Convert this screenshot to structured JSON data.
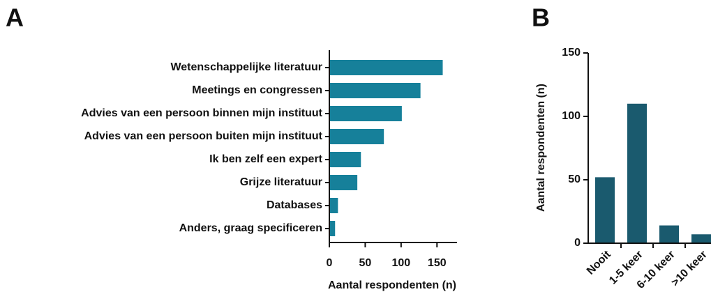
{
  "chart_data": [
    {
      "type": "hbar",
      "panel": "A",
      "categories": [
        "Wetenschappelijke literatuur",
        "Meetings en congressen",
        "Advies van een persoon binnen mijn instituut",
        "Advies van een persoon buiten mijn instituut",
        "Ik ben zelf een expert",
        "Grijze literatuur",
        "Databases",
        "Anders, graag specificeren"
      ],
      "values": [
        158,
        127,
        101,
        76,
        44,
        39,
        12,
        8
      ],
      "color": "#16809a",
      "xlabel": "Aantal respondenten (n)",
      "xlim": [
        0,
        175
      ],
      "xticks": [
        0,
        50,
        100,
        150
      ]
    },
    {
      "type": "bar",
      "panel": "B",
      "categories": [
        "Nooit",
        "1-5 keer",
        "6-10 keer",
        ">10 keer"
      ],
      "values": [
        52,
        110,
        14,
        7
      ],
      "color": "#1a5a6e",
      "ylabel": "Aantal respondenten (n)",
      "ylim": [
        0,
        150
      ],
      "yticks": [
        0,
        50,
        100,
        150
      ]
    }
  ]
}
